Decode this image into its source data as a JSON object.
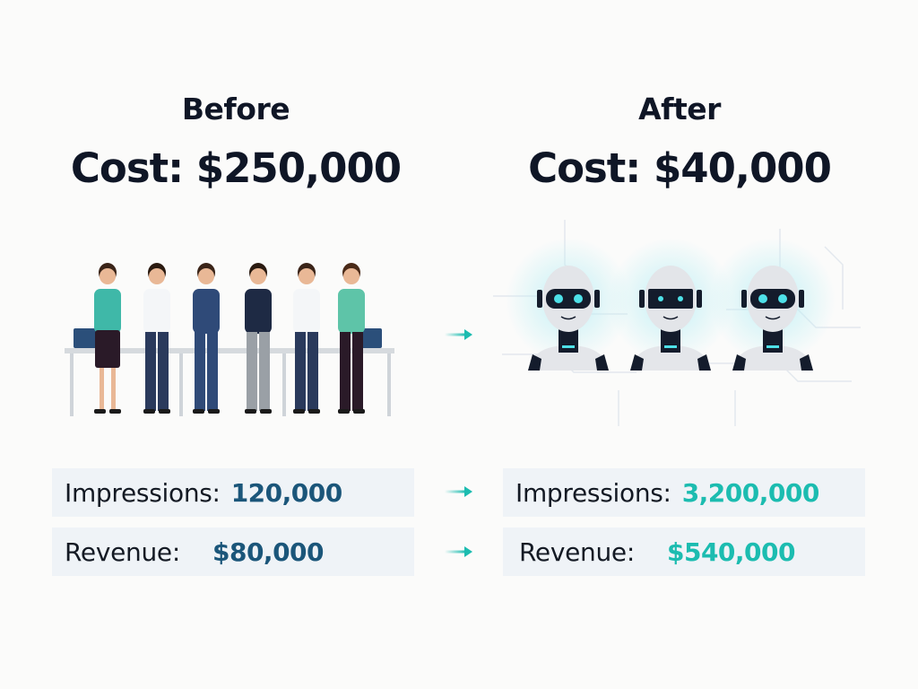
{
  "before": {
    "heading": "Before",
    "cost": "Cost: $250,000",
    "illustration": "team-of-people-at-desks",
    "metrics": [
      {
        "label": "Impressions:",
        "value": "120,000"
      },
      {
        "label": "Revenue:",
        "value": "$80,000"
      }
    ]
  },
  "after": {
    "heading": "After",
    "cost": "Cost: $40,000",
    "illustration": "three-ai-robot-heads-on-circuit-background",
    "metrics": [
      {
        "label": "Impressions:",
        "value": "3,200,000"
      },
      {
        "label": "Revenue:",
        "value": "$540,000"
      }
    ]
  },
  "colors": {
    "before_value": "#1b567a",
    "after_value": "#1cbcb0",
    "arrow": "#1cbcb0",
    "metric_box": "#eff3f7",
    "heading_text": "#0f1626"
  },
  "icons": [
    "arrow-right-icon"
  ]
}
